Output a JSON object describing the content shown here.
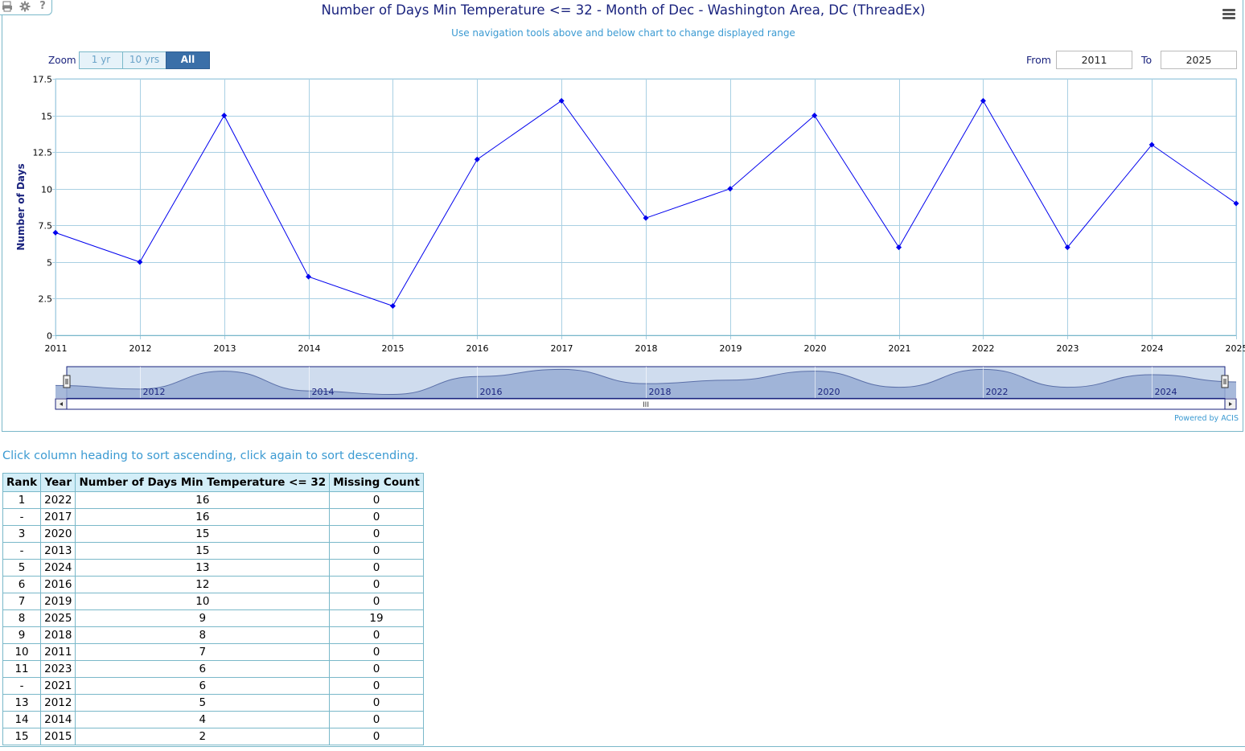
{
  "toolbar": {
    "icons": [
      "printer-icon",
      "gear-icon",
      "help-icon"
    ],
    "help_glyph": "?",
    "menu_icon": "hamburger-menu-icon"
  },
  "chart_data": {
    "type": "line",
    "title": "Number of Days Min Temperature <= 32 - Month of Dec - Washington Area, DC (ThreadEx)",
    "subtitle": "Use navigation tools above and below chart to change displayed range",
    "xlabel": "",
    "ylabel": "Number of Days",
    "x": [
      2011,
      2012,
      2013,
      2014,
      2015,
      2016,
      2017,
      2018,
      2019,
      2020,
      2021,
      2022,
      2023,
      2024,
      2025
    ],
    "series": [
      {
        "values": [
          7,
          5,
          15,
          4,
          2,
          12,
          16,
          8,
          10,
          15,
          6,
          16,
          6,
          13,
          9
        ],
        "color": "#0000ee"
      }
    ],
    "xlim": [
      2011,
      2025
    ],
    "ylim": [
      0,
      17.5
    ],
    "y_ticks": [
      "0",
      "2.5",
      "5",
      "7.5",
      "10",
      "12.5",
      "15",
      "17.5"
    ],
    "x_ticks": [
      "2011",
      "2012",
      "2013",
      "2014",
      "2015",
      "2016",
      "2017",
      "2018",
      "2019",
      "2020",
      "2021",
      "2022",
      "2023",
      "2024",
      "2025"
    ],
    "navigator_ticks": [
      "2012",
      "2014",
      "2016",
      "2018",
      "2020",
      "2022",
      "2024"
    ],
    "grid": true,
    "legend": "none",
    "grid_color": "#a9d0e3",
    "navigator_fill": "#98add3"
  },
  "range_selector": {
    "zoom_label": "Zoom",
    "buttons": [
      {
        "label": "1 yr",
        "active": false
      },
      {
        "label": "10 yrs",
        "active": false
      },
      {
        "label": "All",
        "active": true
      }
    ],
    "from_label": "From",
    "from_value": "2011",
    "to_label": "To",
    "to_value": "2025"
  },
  "navigator": {
    "scroll_grip": "III",
    "left_arrow": "◂",
    "right_arrow": "▸"
  },
  "credits": "Powered by ACIS",
  "table": {
    "hint": "Click column heading to sort ascending, click again to sort descending.",
    "headers": [
      "Rank",
      "Year",
      "Number of Days Min Temperature <= 32",
      "Missing Count"
    ],
    "rows": [
      [
        "1",
        "2022",
        "16",
        "0"
      ],
      [
        "-",
        "2017",
        "16",
        "0"
      ],
      [
        "3",
        "2020",
        "15",
        "0"
      ],
      [
        "-",
        "2013",
        "15",
        "0"
      ],
      [
        "5",
        "2024",
        "13",
        "0"
      ],
      [
        "6",
        "2016",
        "12",
        "0"
      ],
      [
        "7",
        "2019",
        "10",
        "0"
      ],
      [
        "8",
        "2025",
        "9",
        "19"
      ],
      [
        "9",
        "2018",
        "8",
        "0"
      ],
      [
        "10",
        "2011",
        "7",
        "0"
      ],
      [
        "11",
        "2023",
        "6",
        "0"
      ],
      [
        "-",
        "2021",
        "6",
        "0"
      ],
      [
        "13",
        "2012",
        "5",
        "0"
      ],
      [
        "14",
        "2014",
        "4",
        "0"
      ],
      [
        "15",
        "2015",
        "2",
        "0"
      ]
    ]
  }
}
